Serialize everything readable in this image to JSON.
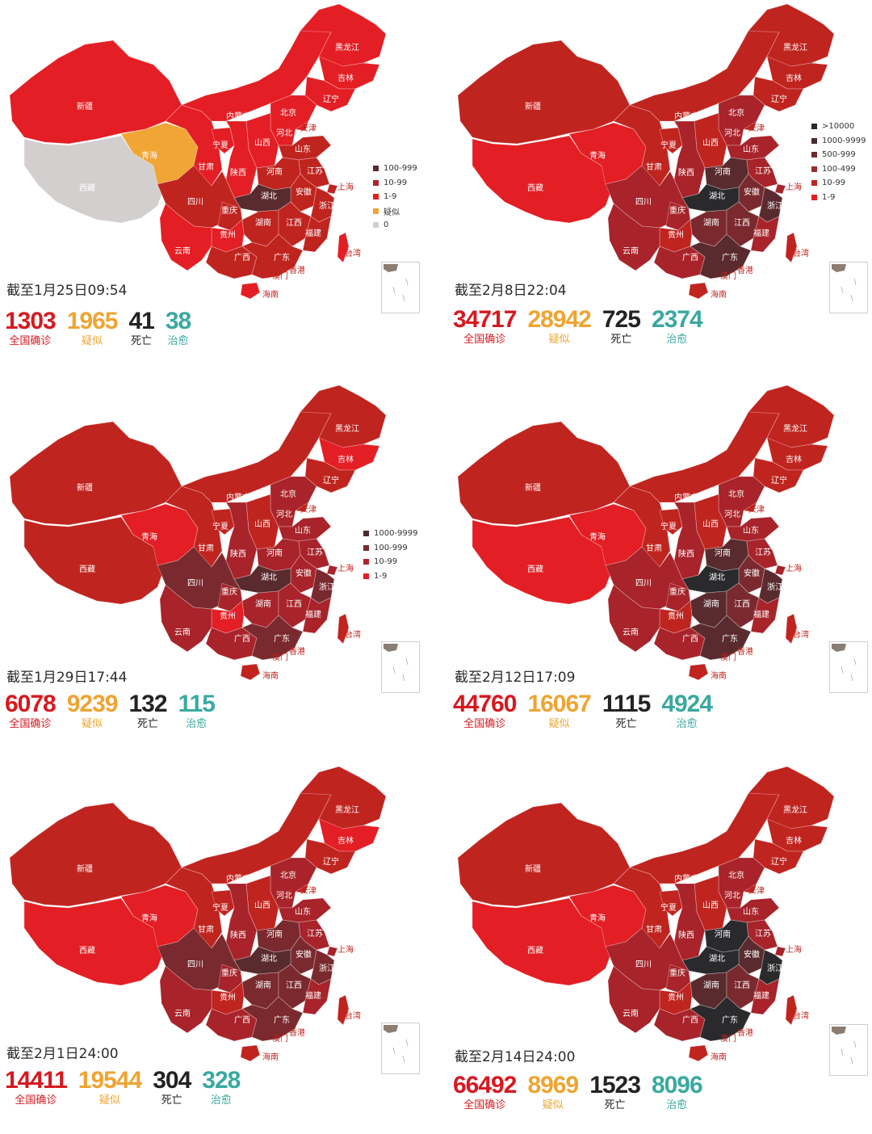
{
  "colors": {
    "confirm": "#d7191f",
    "suspect": "#efa432",
    "death": "#232323",
    "cured": "#3aa9a0",
    "lvl_1_9": "#e31e24",
    "lvl_10_99": "#c0241f",
    "lvl_100_499": "#a8232a",
    "lvl_500_999": "#7a2a2e",
    "lvl_1000_9999": "#5a2b2e",
    "lvl_10000": "#2a2a2d",
    "suspected": "#f1a534",
    "zero": "#d3cfcf"
  },
  "province_labels": {
    "xinjiang": "新疆",
    "xizang": "西藏",
    "qinghai": "青海",
    "gansu": "甘肃",
    "neimenggu": "内蒙古",
    "heilongjiang": "黑龙江",
    "jilin": "吉林",
    "liaoning": "辽宁",
    "beijing": "北京",
    "tianjin": "天津",
    "hebei": "河北",
    "shanxi": "山西",
    "shandong": "山东",
    "ningxia": "宁夏",
    "shaanxi": "陕西",
    "henan": "河南",
    "jiangsu": "江苏",
    "shanghai": "上海",
    "anhui": "安徽",
    "hubei": "湖北",
    "sichuan": "四川",
    "chongqing": "重庆",
    "zhejiang": "浙江",
    "hunan": "湖南",
    "jiangxi": "江西",
    "guizhou": "贵州",
    "fujian": "福建",
    "yunnan": "云南",
    "guangxi": "广西",
    "guangdong": "广东",
    "taiwan": "台湾",
    "hongkong": "香港",
    "macau": "澳门",
    "hainan": "海南"
  },
  "panels": [
    {
      "caption": "截至1月25日09:54",
      "stats": {
        "confirm": "1303",
        "suspect": "1965",
        "death": "41",
        "cured": "38"
      },
      "labels": {
        "confirm": "全国确诊",
        "suspect": "疑似",
        "death": "死亡",
        "cured": "治愈"
      },
      "legend": [
        {
          "label": "100-999",
          "color": "#5a2b2e"
        },
        {
          "label": "10-99",
          "color": "#b0232a"
        },
        {
          "label": "1-9",
          "color": "#e31e24"
        },
        {
          "label": "疑似",
          "color": "#f1a534"
        },
        {
          "label": "0",
          "color": "#d3cfcf"
        }
      ]
    },
    {
      "caption": "截至2月8日22:04",
      "stats": {
        "confirm": "34717",
        "suspect": "28942",
        "death": "725",
        "cured": "2374"
      },
      "labels": {
        "confirm": "全国确诊",
        "suspect": "疑似",
        "death": "死亡",
        "cured": "治愈"
      },
      "legend": [
        {
          "label": ">10000",
          "color": "#2a2a2d"
        },
        {
          "label": "1000-9999",
          "color": "#4a2a2c"
        },
        {
          "label": "500-999",
          "color": "#6e2b2f"
        },
        {
          "label": "100-499",
          "color": "#9a2a2e"
        },
        {
          "label": "10-99",
          "color": "#c0241f"
        },
        {
          "label": "1-9",
          "color": "#e31e24"
        }
      ]
    },
    {
      "caption": "截至1月29日17:44",
      "stats": {
        "confirm": "6078",
        "suspect": "9239",
        "death": "132",
        "cured": "115"
      },
      "labels": {
        "confirm": "全国确诊",
        "suspect": "疑似",
        "death": "死亡",
        "cured": "治愈"
      },
      "legend": [
        {
          "label": "1000-9999",
          "color": "#4a2a2c"
        },
        {
          "label": "100-999",
          "color": "#7a2a2e"
        },
        {
          "label": "10-99",
          "color": "#b0232a"
        },
        {
          "label": "1-9",
          "color": "#e31e24"
        }
      ]
    },
    {
      "caption": "截至2月12日17:09",
      "stats": {
        "confirm": "44760",
        "suspect": "16067",
        "death": "1115",
        "cured": "4924"
      },
      "labels": {
        "confirm": "全国确诊",
        "suspect": "疑似",
        "death": "死亡",
        "cured": "治愈"
      },
      "legend": []
    },
    {
      "caption": "截至2月1日24:00",
      "stats": {
        "confirm": "14411",
        "suspect": "19544",
        "death": "304",
        "cured": "328"
      },
      "labels": {
        "confirm": "全国确诊",
        "suspect": "疑似",
        "death": "死亡",
        "cured": "治愈"
      },
      "legend": []
    },
    {
      "caption": "截至2月14日24:00",
      "stats": {
        "confirm": "66492",
        "suspect": "8969",
        "death": "1523",
        "cured": "8096"
      },
      "labels": {
        "confirm": "全国确诊",
        "suspect": "疑似",
        "death": "死亡",
        "cured": "治愈"
      },
      "legend": []
    }
  ]
}
